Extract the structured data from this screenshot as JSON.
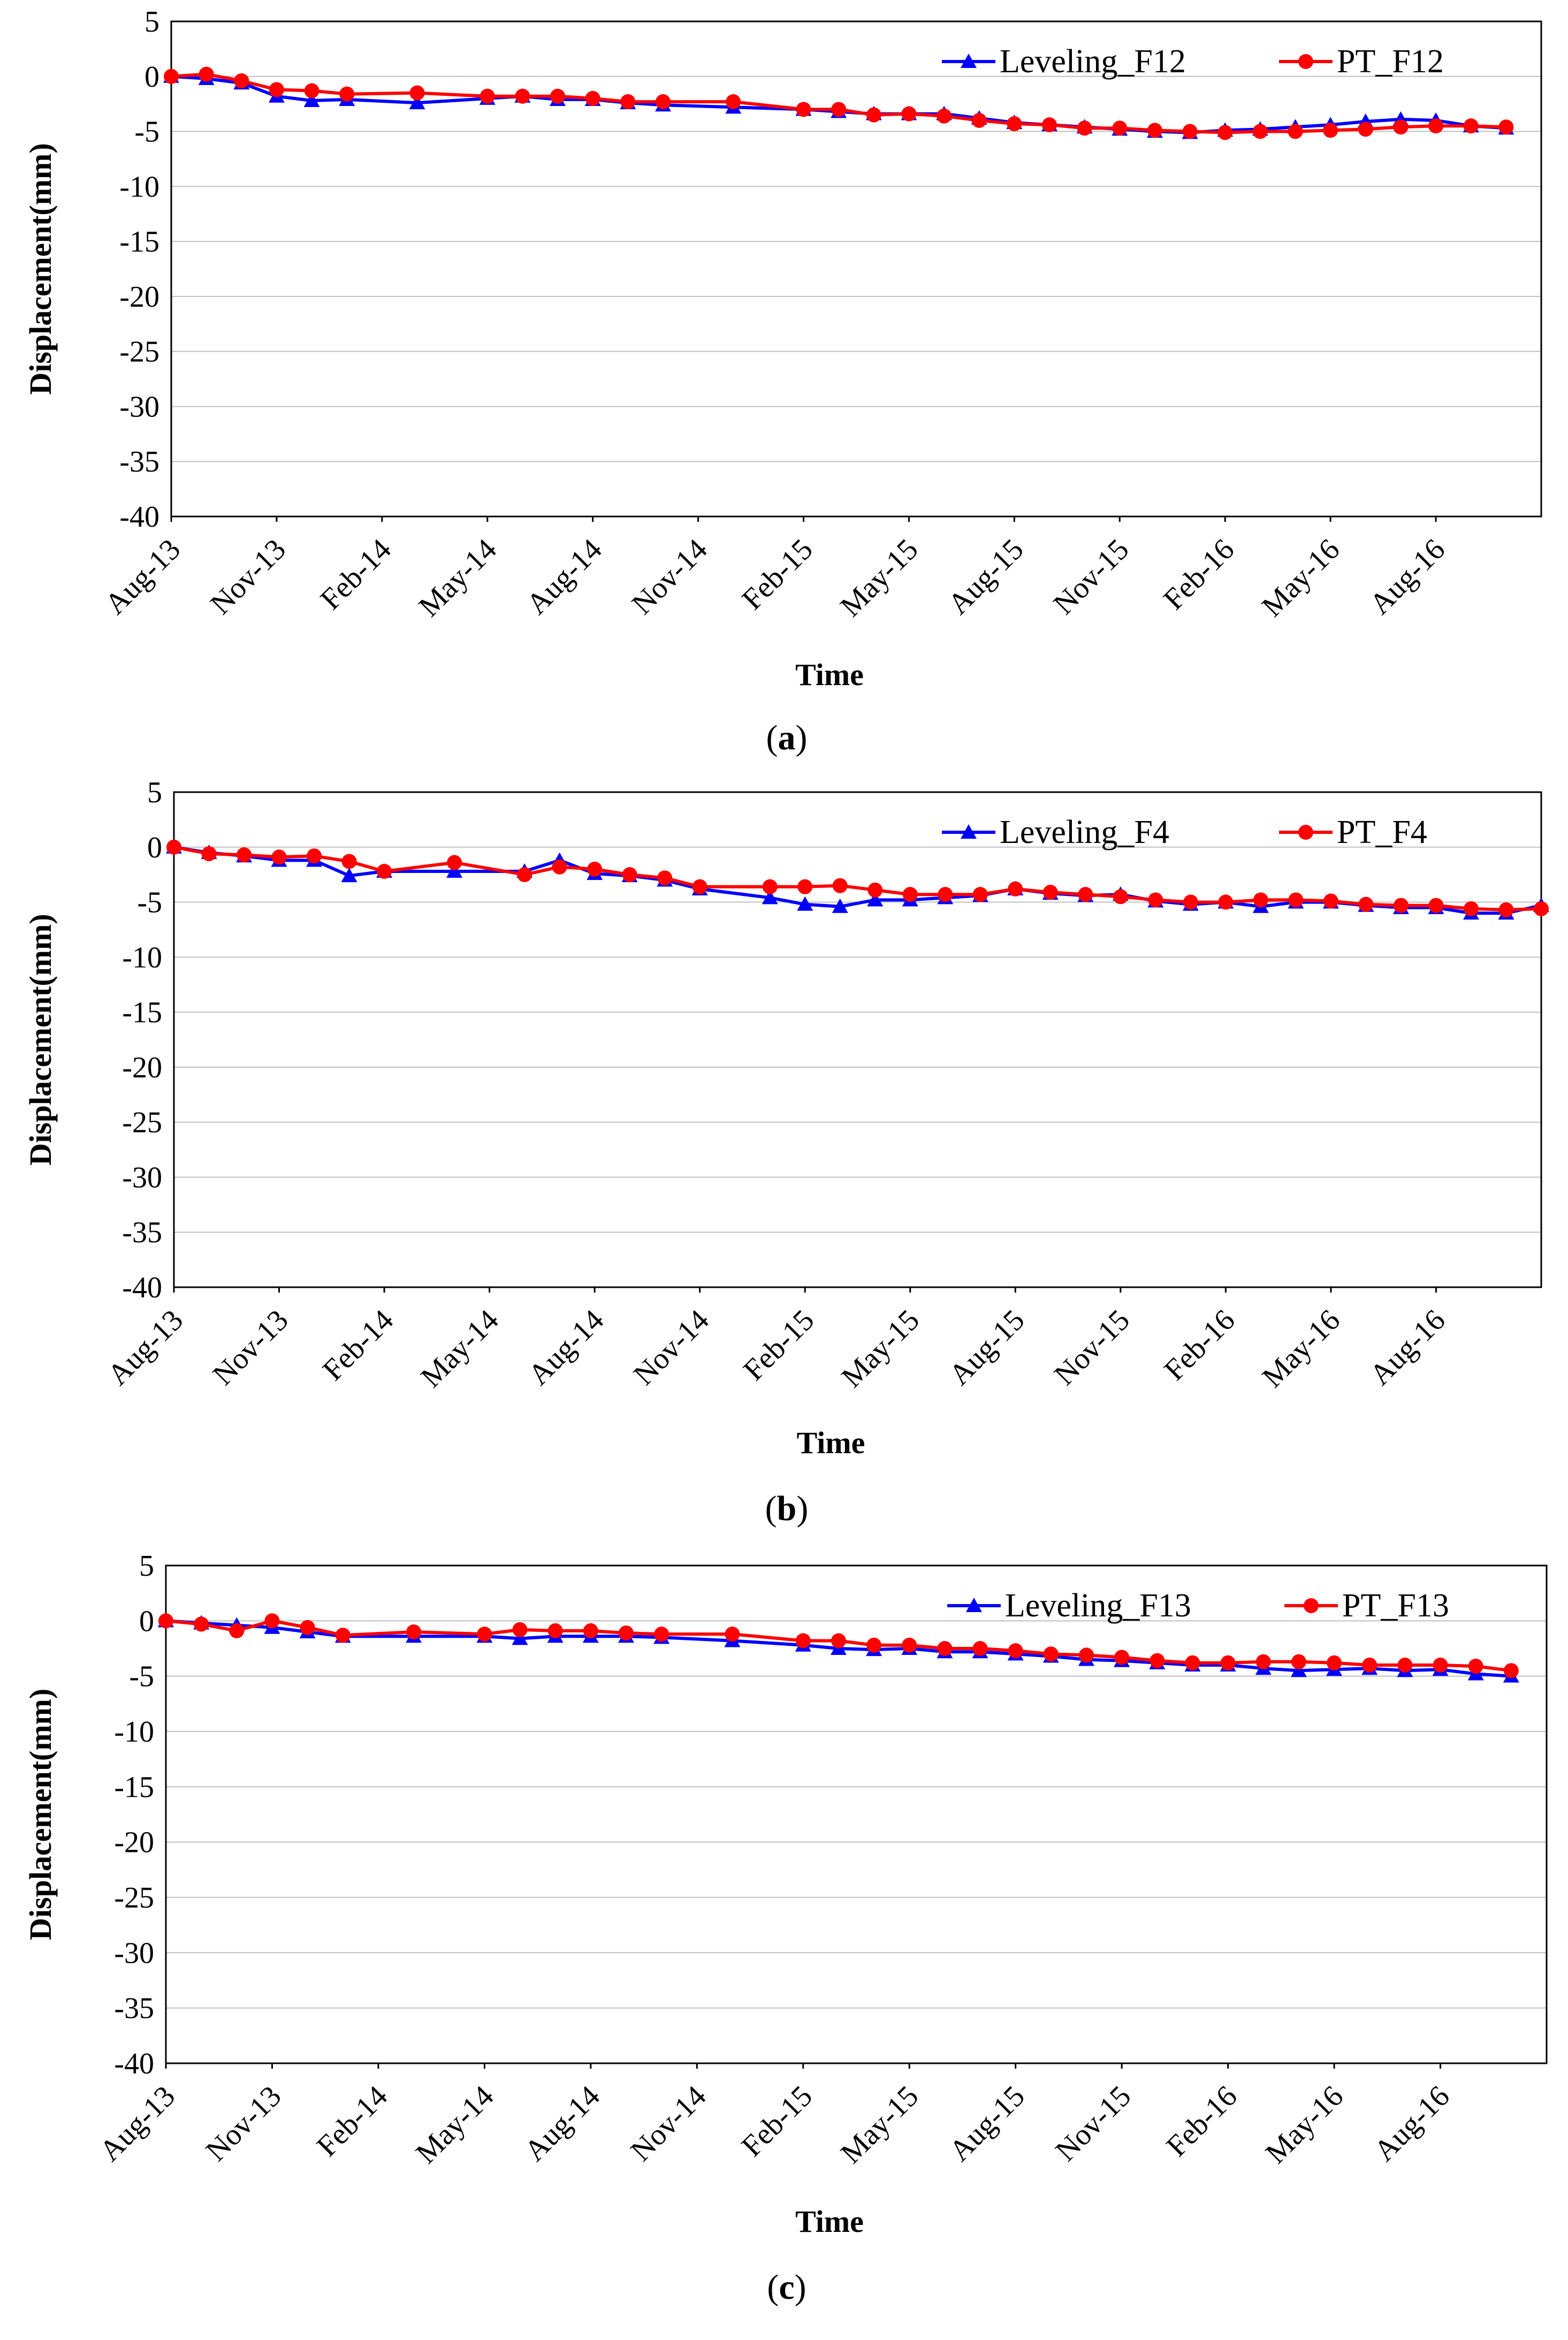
{
  "colors": {
    "leveling": "#0000FF",
    "pt": "#FF0000",
    "grid": "#BFBFBF",
    "axis": "#000000"
  },
  "chart_data": [
    {
      "type": "line",
      "panel": "a",
      "caption_letter": "a",
      "xlabel": "Time",
      "ylabel": "Displacement(mm)",
      "ylim": [
        -40,
        5
      ],
      "yticks": [
        5,
        0,
        -5,
        -10,
        -15,
        -20,
        -25,
        -30,
        -35,
        -40
      ],
      "x_tick_labels": [
        "Aug-13",
        "Nov-13",
        "Feb-14",
        "May-14",
        "Aug-14",
        "Nov-14",
        "Feb-15",
        "May-15",
        "Aug-15",
        "Nov-15",
        "Feb-16",
        "May-16",
        "Aug-16"
      ],
      "x_range_months": [
        0,
        39
      ],
      "legend_position": "top-right",
      "series": [
        {
          "name": "Leveling_F12",
          "marker": "triangle",
          "color": "#0000FF",
          "points": [
            [
              0,
              0
            ],
            [
              1,
              -0.2
            ],
            [
              2,
              -0.6
            ],
            [
              3,
              -1.8
            ],
            [
              4,
              -2.2
            ],
            [
              5,
              -2.1
            ],
            [
              7,
              -2.4
            ],
            [
              9,
              -2.0
            ],
            [
              10,
              -1.8
            ],
            [
              11,
              -2.1
            ],
            [
              12,
              -2.1
            ],
            [
              13,
              -2.4
            ],
            [
              14,
              -2.6
            ],
            [
              16,
              -2.8
            ],
            [
              18,
              -3.0
            ],
            [
              19,
              -3.2
            ],
            [
              20,
              -3.4
            ],
            [
              21,
              -3.4
            ],
            [
              22,
              -3.4
            ],
            [
              23,
              -3.8
            ],
            [
              24,
              -4.2
            ],
            [
              25,
              -4.4
            ],
            [
              26,
              -4.6
            ],
            [
              27,
              -4.8
            ],
            [
              28,
              -5.0
            ],
            [
              29,
              -5.1
            ],
            [
              30,
              -4.9
            ],
            [
              31,
              -4.8
            ],
            [
              32,
              -4.6
            ],
            [
              33,
              -4.4
            ],
            [
              34,
              -4.1
            ],
            [
              35,
              -3.9
            ],
            [
              36,
              -4.0
            ],
            [
              37,
              -4.5
            ],
            [
              38,
              -4.7
            ]
          ]
        },
        {
          "name": "PT_F12",
          "marker": "circle",
          "color": "#FF0000",
          "points": [
            [
              0,
              0
            ],
            [
              1,
              0.2
            ],
            [
              2,
              -0.4
            ],
            [
              3,
              -1.2
            ],
            [
              4,
              -1.3
            ],
            [
              5,
              -1.6
            ],
            [
              7,
              -1.5
            ],
            [
              9,
              -1.8
            ],
            [
              10,
              -1.8
            ],
            [
              11,
              -1.8
            ],
            [
              12,
              -2.0
            ],
            [
              13,
              -2.3
            ],
            [
              14,
              -2.3
            ],
            [
              16,
              -2.3
            ],
            [
              18,
              -3.0
            ],
            [
              19,
              -3.0
            ],
            [
              20,
              -3.5
            ],
            [
              21,
              -3.4
            ],
            [
              22,
              -3.6
            ],
            [
              23,
              -4.0
            ],
            [
              24,
              -4.3
            ],
            [
              25,
              -4.4
            ],
            [
              26,
              -4.7
            ],
            [
              27,
              -4.7
            ],
            [
              28,
              -4.9
            ],
            [
              29,
              -5.0
            ],
            [
              30,
              -5.1
            ],
            [
              31,
              -5.0
            ],
            [
              32,
              -5.0
            ],
            [
              33,
              -4.9
            ],
            [
              34,
              -4.8
            ],
            [
              35,
              -4.6
            ],
            [
              36,
              -4.5
            ],
            [
              37,
              -4.5
            ],
            [
              38,
              -4.6
            ]
          ]
        }
      ]
    },
    {
      "type": "line",
      "panel": "b",
      "caption_letter": "b",
      "xlabel": "Time",
      "ylabel": "Displacement(mm)",
      "ylim": [
        -40,
        5
      ],
      "yticks": [
        5,
        0,
        -5,
        -10,
        -15,
        -20,
        -25,
        -30,
        -35,
        -40
      ],
      "x_tick_labels": [
        "Aug-13",
        "Nov-13",
        "Feb-14",
        "May-14",
        "Aug-14",
        "Nov-14",
        "Feb-15",
        "May-15",
        "Aug-15",
        "Nov-15",
        "Feb-16",
        "May-16",
        "Aug-16"
      ],
      "x_range_months": [
        0,
        39
      ],
      "legend_position": "top-right",
      "series": [
        {
          "name": "Leveling_F4",
          "marker": "triangle",
          "color": "#0000FF",
          "points": [
            [
              0,
              0
            ],
            [
              1,
              -0.5
            ],
            [
              2,
              -0.8
            ],
            [
              3,
              -1.2
            ],
            [
              4,
              -1.2
            ],
            [
              5,
              -2.6
            ],
            [
              6,
              -2.2
            ],
            [
              8,
              -2.2
            ],
            [
              10,
              -2.2
            ],
            [
              11,
              -1.2
            ],
            [
              12,
              -2.4
            ],
            [
              13,
              -2.6
            ],
            [
              14,
              -3.0
            ],
            [
              15,
              -3.8
            ],
            [
              17,
              -4.6
            ],
            [
              18,
              -5.2
            ],
            [
              19,
              -5.4
            ],
            [
              20,
              -4.8
            ],
            [
              21,
              -4.8
            ],
            [
              22,
              -4.6
            ],
            [
              23,
              -4.4
            ],
            [
              24,
              -3.8
            ],
            [
              25,
              -4.2
            ],
            [
              26,
              -4.4
            ],
            [
              27,
              -4.3
            ],
            [
              28,
              -4.9
            ],
            [
              29,
              -5.2
            ],
            [
              30,
              -5.0
            ],
            [
              31,
              -5.4
            ],
            [
              32,
              -5.0
            ],
            [
              33,
              -5.0
            ],
            [
              34,
              -5.3
            ],
            [
              35,
              -5.5
            ],
            [
              36,
              -5.5
            ],
            [
              37,
              -6.0
            ],
            [
              38,
              -6.0
            ],
            [
              39,
              -5.3
            ]
          ]
        },
        {
          "name": "PT_F4",
          "marker": "circle",
          "color": "#FF0000",
          "points": [
            [
              0,
              0
            ],
            [
              1,
              -0.6
            ],
            [
              2,
              -0.7
            ],
            [
              3,
              -0.9
            ],
            [
              4,
              -0.8
            ],
            [
              5,
              -1.3
            ],
            [
              6,
              -2.2
            ],
            [
              8,
              -1.4
            ],
            [
              10,
              -2.5
            ],
            [
              11,
              -1.8
            ],
            [
              12,
              -2.0
            ],
            [
              13,
              -2.5
            ],
            [
              14,
              -2.8
            ],
            [
              15,
              -3.6
            ],
            [
              17,
              -3.6
            ],
            [
              18,
              -3.6
            ],
            [
              19,
              -3.5
            ],
            [
              20,
              -3.9
            ],
            [
              21,
              -4.3
            ],
            [
              22,
              -4.3
            ],
            [
              23,
              -4.3
            ],
            [
              24,
              -3.8
            ],
            [
              25,
              -4.1
            ],
            [
              26,
              -4.3
            ],
            [
              27,
              -4.5
            ],
            [
              28,
              -4.8
            ],
            [
              29,
              -5.0
            ],
            [
              30,
              -5.0
            ],
            [
              31,
              -4.8
            ],
            [
              32,
              -4.8
            ],
            [
              33,
              -4.9
            ],
            [
              34,
              -5.2
            ],
            [
              35,
              -5.3
            ],
            [
              36,
              -5.3
            ],
            [
              37,
              -5.6
            ],
            [
              38,
              -5.7
            ],
            [
              39,
              -5.6
            ]
          ]
        }
      ]
    },
    {
      "type": "line",
      "panel": "c",
      "caption_letter": "c",
      "xlabel": "Time",
      "ylabel": "Displacement(mm)",
      "ylim": [
        -40,
        5
      ],
      "yticks": [
        5,
        0,
        -5,
        -10,
        -15,
        -20,
        -25,
        -30,
        -35,
        -40
      ],
      "x_tick_labels": [
        "Aug-13",
        "Nov-13",
        "Feb-14",
        "May-14",
        "Aug-14",
        "Nov-14",
        "Feb-15",
        "May-15",
        "Aug-15",
        "Nov-15",
        "Feb-16",
        "May-16",
        "Aug-16"
      ],
      "x_range_months": [
        0,
        39
      ],
      "legend_position": "top-right",
      "series": [
        {
          "name": "Leveling_F13",
          "marker": "triangle",
          "color": "#0000FF",
          "points": [
            [
              0,
              0
            ],
            [
              1,
              -0.2
            ],
            [
              2,
              -0.4
            ],
            [
              3,
              -0.6
            ],
            [
              4,
              -1.0
            ],
            [
              5,
              -1.4
            ],
            [
              7,
              -1.4
            ],
            [
              9,
              -1.4
            ],
            [
              10,
              -1.6
            ],
            [
              11,
              -1.4
            ],
            [
              12,
              -1.4
            ],
            [
              13,
              -1.4
            ],
            [
              14,
              -1.5
            ],
            [
              16,
              -1.8
            ],
            [
              18,
              -2.2
            ],
            [
              19,
              -2.5
            ],
            [
              20,
              -2.6
            ],
            [
              21,
              -2.5
            ],
            [
              22,
              -2.8
            ],
            [
              23,
              -2.8
            ],
            [
              24,
              -3.0
            ],
            [
              25,
              -3.2
            ],
            [
              26,
              -3.5
            ],
            [
              27,
              -3.6
            ],
            [
              28,
              -3.8
            ],
            [
              29,
              -4.0
            ],
            [
              30,
              -4.0
            ],
            [
              31,
              -4.3
            ],
            [
              32,
              -4.5
            ],
            [
              33,
              -4.4
            ],
            [
              34,
              -4.3
            ],
            [
              35,
              -4.5
            ],
            [
              36,
              -4.4
            ],
            [
              37,
              -4.8
            ],
            [
              38,
              -5.0
            ]
          ]
        },
        {
          "name": "PT_F13",
          "marker": "circle",
          "color": "#FF0000",
          "points": [
            [
              0,
              0
            ],
            [
              1,
              -0.3
            ],
            [
              2,
              -0.9
            ],
            [
              3,
              0
            ],
            [
              4,
              -0.6
            ],
            [
              5,
              -1.3
            ],
            [
              7,
              -1.0
            ],
            [
              9,
              -1.2
            ],
            [
              10,
              -0.8
            ],
            [
              11,
              -0.9
            ],
            [
              12,
              -0.9
            ],
            [
              13,
              -1.1
            ],
            [
              14,
              -1.2
            ],
            [
              16,
              -1.2
            ],
            [
              18,
              -1.8
            ],
            [
              19,
              -1.8
            ],
            [
              20,
              -2.2
            ],
            [
              21,
              -2.2
            ],
            [
              22,
              -2.5
            ],
            [
              23,
              -2.5
            ],
            [
              24,
              -2.7
            ],
            [
              25,
              -3.0
            ],
            [
              26,
              -3.1
            ],
            [
              27,
              -3.3
            ],
            [
              28,
              -3.6
            ],
            [
              29,
              -3.8
            ],
            [
              30,
              -3.8
            ],
            [
              31,
              -3.7
            ],
            [
              32,
              -3.7
            ],
            [
              33,
              -3.8
            ],
            [
              34,
              -4.0
            ],
            [
              35,
              -4.0
            ],
            [
              36,
              -4.0
            ],
            [
              37,
              -4.1
            ],
            [
              38,
              -4.5
            ]
          ]
        }
      ]
    }
  ]
}
